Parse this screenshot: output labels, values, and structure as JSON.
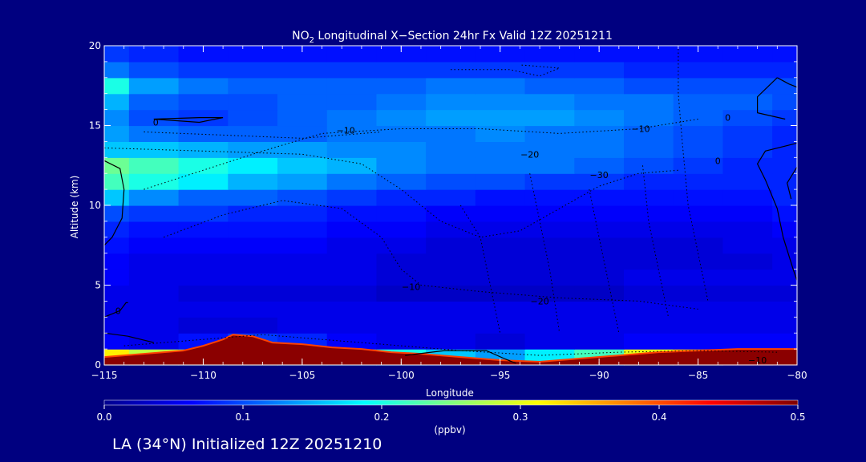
{
  "figure": {
    "background_color": "#000080",
    "text_color": "#ffffff",
    "footer": "LA (34°N) Initialized 12Z 20251210"
  },
  "chart_data": {
    "type": "heatmap",
    "title_prefix": "NO",
    "title_subscript": "2",
    "title_suffix": " Longitudinal X−Section 24hr  Fx Valid 12Z 20251211",
    "xlabel": "Longitude",
    "ylabel": "Altitude (km)",
    "xlim": [
      -115,
      -80
    ],
    "ylim": [
      0,
      20
    ],
    "x_ticks": [
      -115,
      -110,
      -105,
      -100,
      -95,
      -90,
      -85,
      -80
    ],
    "x_tick_labels": [
      "−115",
      "−110",
      "−105",
      "−100",
      "−95",
      "−90",
      "−85",
      "−80"
    ],
    "y_ticks": [
      0,
      5,
      10,
      15,
      20
    ],
    "y_tick_labels": [
      "0",
      "5",
      "10",
      "15",
      "20"
    ],
    "colorbar": {
      "label": "(ppbv)",
      "range": [
        0.0,
        0.5
      ],
      "ticks": [
        0.0,
        0.1,
        0.2,
        0.3,
        0.4,
        0.5
      ],
      "tick_labels": [
        "0.0",
        "0.1",
        "0.2",
        "0.3",
        "0.4",
        "0.5"
      ],
      "colors": [
        "#00008f",
        "#0000ff",
        "#0080ff",
        "#00ffff",
        "#80ff80",
        "#ffff00",
        "#ff8000",
        "#ff0000",
        "#800000"
      ]
    },
    "grid": false,
    "x": [
      -115,
      -112.5,
      -110,
      -107.5,
      -105,
      -102.5,
      -100,
      -97.5,
      -95,
      -92.5,
      -90,
      -87.5,
      -85,
      -82.5,
      -80
    ],
    "y": [
      0.5,
      1.5,
      2.5,
      3.5,
      4.5,
      5.5,
      6.5,
      7.5,
      8.5,
      9.5,
      10.5,
      11.5,
      12.5,
      13.5,
      14.5,
      15.5,
      16.5,
      17.5,
      18.5,
      19.5
    ],
    "z": [
      [
        0.32,
        0.28,
        0.26,
        0.3,
        0.26,
        0.22,
        0.2,
        0.16,
        0.14,
        0.18,
        0.22,
        0.3,
        0.34,
        0.4,
        0.46
      ],
      [
        0.06,
        0.05,
        0.07,
        0.09,
        0.08,
        0.06,
        0.05,
        0.05,
        0.04,
        0.05,
        0.05,
        0.06,
        0.06,
        0.06,
        0.06
      ],
      [
        0.05,
        0.05,
        0.04,
        0.04,
        0.05,
        0.05,
        0.05,
        0.05,
        0.05,
        0.05,
        0.05,
        0.05,
        0.05,
        0.05,
        0.05
      ],
      [
        0.05,
        0.05,
        0.05,
        0.05,
        0.05,
        0.05,
        0.05,
        0.05,
        0.05,
        0.05,
        0.05,
        0.05,
        0.05,
        0.05,
        0.05
      ],
      [
        0.05,
        0.05,
        0.04,
        0.04,
        0.04,
        0.04,
        0.03,
        0.03,
        0.03,
        0.03,
        0.03,
        0.04,
        0.04,
        0.04,
        0.04
      ],
      [
        0.06,
        0.05,
        0.05,
        0.05,
        0.05,
        0.05,
        0.04,
        0.04,
        0.04,
        0.04,
        0.04,
        0.05,
        0.05,
        0.05,
        0.05
      ],
      [
        0.06,
        0.05,
        0.05,
        0.05,
        0.05,
        0.05,
        0.04,
        0.04,
        0.04,
        0.04,
        0.04,
        0.04,
        0.04,
        0.04,
        0.05
      ],
      [
        0.07,
        0.06,
        0.06,
        0.06,
        0.06,
        0.05,
        0.05,
        0.04,
        0.04,
        0.04,
        0.04,
        0.04,
        0.04,
        0.05,
        0.05
      ],
      [
        0.08,
        0.07,
        0.07,
        0.07,
        0.07,
        0.06,
        0.06,
        0.05,
        0.05,
        0.05,
        0.05,
        0.05,
        0.05,
        0.05,
        0.06
      ],
      [
        0.1,
        0.09,
        0.09,
        0.08,
        0.08,
        0.07,
        0.07,
        0.06,
        0.06,
        0.06,
        0.06,
        0.06,
        0.06,
        0.06,
        0.07
      ],
      [
        0.16,
        0.13,
        0.11,
        0.11,
        0.1,
        0.09,
        0.08,
        0.08,
        0.07,
        0.07,
        0.07,
        0.07,
        0.07,
        0.07,
        0.08
      ],
      [
        0.22,
        0.2,
        0.18,
        0.15,
        0.14,
        0.12,
        0.11,
        0.1,
        0.1,
        0.09,
        0.09,
        0.08,
        0.08,
        0.08,
        0.08
      ],
      [
        0.24,
        0.22,
        0.2,
        0.18,
        0.16,
        0.15,
        0.13,
        0.12,
        0.12,
        0.12,
        0.11,
        0.1,
        0.09,
        0.08,
        0.08
      ],
      [
        0.16,
        0.16,
        0.15,
        0.14,
        0.14,
        0.13,
        0.13,
        0.12,
        0.12,
        0.12,
        0.12,
        0.11,
        0.1,
        0.09,
        0.08
      ],
      [
        0.14,
        0.12,
        0.11,
        0.11,
        0.11,
        0.12,
        0.12,
        0.12,
        0.13,
        0.12,
        0.12,
        0.11,
        0.1,
        0.09,
        0.08
      ],
      [
        0.13,
        0.1,
        0.09,
        0.1,
        0.11,
        0.12,
        0.13,
        0.14,
        0.14,
        0.14,
        0.13,
        0.12,
        0.11,
        0.1,
        0.09
      ],
      [
        0.15,
        0.11,
        0.1,
        0.1,
        0.11,
        0.11,
        0.12,
        0.13,
        0.13,
        0.13,
        0.12,
        0.12,
        0.11,
        0.11,
        0.1
      ],
      [
        0.2,
        0.14,
        0.12,
        0.11,
        0.11,
        0.11,
        0.11,
        0.12,
        0.12,
        0.11,
        0.11,
        0.1,
        0.1,
        0.1,
        0.1
      ],
      [
        0.12,
        0.1,
        0.09,
        0.09,
        0.09,
        0.09,
        0.09,
        0.09,
        0.09,
        0.09,
        0.09,
        0.08,
        0.08,
        0.08,
        0.08
      ],
      [
        0.09,
        0.08,
        0.07,
        0.07,
        0.07,
        0.07,
        0.07,
        0.07,
        0.07,
        0.07,
        0.07,
        0.07,
        0.07,
        0.07,
        0.07
      ]
    ],
    "terrain": {
      "x": [
        -115,
        -113,
        -111,
        -110,
        -109,
        -108.5,
        -107.5,
        -106.5,
        -105,
        -103.5,
        -102,
        -100.5,
        -99,
        -97,
        -95,
        -93,
        -91,
        -89,
        -87,
        -85,
        -83,
        -80
      ],
      "y": [
        0.5,
        0.7,
        0.9,
        1.2,
        1.6,
        1.9,
        1.8,
        1.4,
        1.3,
        1.1,
        1.0,
        0.8,
        0.7,
        0.5,
        0.3,
        0.2,
        0.4,
        0.6,
        0.8,
        0.9,
        1.0,
        1.0
      ]
    },
    "contour_labels": [
      {
        "text": "0",
        "x": -112.4,
        "y": 15.2
      },
      {
        "text": "−10",
        "x": -102.8,
        "y": 14.7
      },
      {
        "text": "−10",
        "x": -99.5,
        "y": 4.9
      },
      {
        "text": "−10",
        "x": -87.9,
        "y": 14.8
      },
      {
        "text": "−20",
        "x": -93.5,
        "y": 13.2
      },
      {
        "text": "−30",
        "x": -90.0,
        "y": 11.9
      },
      {
        "text": "−20",
        "x": -93.0,
        "y": 4.0
      },
      {
        "text": "0",
        "x": -114.3,
        "y": 3.4
      },
      {
        "text": "0",
        "x": -83.5,
        "y": 15.5
      },
      {
        "text": "0",
        "x": -84.0,
        "y": 12.8
      },
      {
        "text": "−10",
        "x": -82.0,
        "y": 0.3
      }
    ],
    "contour_lines_solid": [
      [
        [
          -112.5,
          15.4
        ],
        [
          -110.2,
          15.5
        ],
        [
          -109.0,
          15.5
        ],
        [
          -110.2,
          15.2
        ],
        [
          -112.5,
          15.4
        ]
      ],
      [
        [
          -115,
          12.8
        ],
        [
          -114.2,
          12.3
        ],
        [
          -114.0,
          11.0
        ],
        [
          -114.1,
          9.2
        ],
        [
          -114.6,
          8.0
        ],
        [
          -115,
          7.5
        ]
      ],
      [
        [
          -115,
          3.0
        ],
        [
          -114.2,
          3.4
        ],
        [
          -113.9,
          3.9
        ],
        [
          -113.8,
          3.9
        ]
      ],
      [
        [
          -115,
          2.0
        ],
        [
          -113.8,
          1.8
        ],
        [
          -112.5,
          1.4
        ]
      ],
      [
        [
          -81.0,
          18.0
        ],
        [
          -80.4,
          17.6
        ],
        [
          -80.0,
          17.4
        ]
      ],
      [
        [
          -81.0,
          18.0
        ],
        [
          -82.0,
          16.8
        ],
        [
          -82.0,
          15.8
        ],
        [
          -80.6,
          15.4
        ]
      ],
      [
        [
          -80.0,
          13.9
        ],
        [
          -81.6,
          13.4
        ],
        [
          -82.0,
          12.6
        ],
        [
          -81.6,
          11.6
        ],
        [
          -81.0,
          9.8
        ],
        [
          -80.7,
          8.0
        ],
        [
          -80.2,
          6.0
        ],
        [
          -80.0,
          5.3
        ]
      ],
      [
        [
          -80.0,
          12.4
        ],
        [
          -80.5,
          11.4
        ],
        [
          -80.3,
          10.4
        ]
      ],
      [
        [
          -99.8,
          0.6
        ],
        [
          -97.8,
          0.9
        ],
        [
          -95.7,
          0.9
        ],
        [
          -94.8,
          0.4
        ],
        [
          -94.2,
          0.1
        ]
      ]
    ],
    "contour_lines_dotted": [
      [
        [
          -115,
          13.6
        ],
        [
          -110,
          13.4
        ],
        [
          -105,
          13.2
        ],
        [
          -102,
          12.6
        ],
        [
          -100,
          11.0
        ],
        [
          -98,
          9.0
        ],
        [
          -96,
          8.0
        ],
        [
          -94,
          8.4
        ],
        [
          -92,
          9.8
        ],
        [
          -90,
          11.2
        ],
        [
          -88,
          12.0
        ],
        [
          -86,
          12.2
        ]
      ],
      [
        [
          -113,
          11.0
        ],
        [
          -110,
          12.2
        ],
        [
          -107,
          13.4
        ],
        [
          -104,
          14.5
        ],
        [
          -100,
          14.8
        ],
        [
          -96,
          14.8
        ],
        [
          -92,
          14.5
        ],
        [
          -88,
          14.8
        ],
        [
          -85,
          15.4
        ]
      ],
      [
        [
          -112,
          8.0
        ],
        [
          -109,
          9.4
        ],
        [
          -106,
          10.3
        ],
        [
          -103,
          9.8
        ],
        [
          -101,
          8.0
        ],
        [
          -100,
          6.0
        ],
        [
          -99,
          5.0
        ],
        [
          -96,
          4.6
        ],
        [
          -92,
          4.2
        ],
        [
          -88,
          4.0
        ],
        [
          -85,
          3.5
        ]
      ],
      [
        [
          -97,
          10.0
        ],
        [
          -96,
          8.0
        ],
        [
          -95.5,
          5.0
        ],
        [
          -95,
          2.0
        ]
      ],
      [
        [
          -93.5,
          12.0
        ],
        [
          -93,
          9.0
        ],
        [
          -92.5,
          6.0
        ],
        [
          -92,
          2.0
        ]
      ],
      [
        [
          -90.5,
          11.0
        ],
        [
          -90,
          8.0
        ],
        [
          -89.5,
          5.0
        ],
        [
          -89,
          2.0
        ]
      ],
      [
        [
          -87.8,
          12.5
        ],
        [
          -87.5,
          9.0
        ],
        [
          -87,
          6.0
        ],
        [
          -86.5,
          3.0
        ]
      ],
      [
        [
          -86,
          19.8
        ],
        [
          -86,
          17.0
        ],
        [
          -85.8,
          14.0
        ],
        [
          -85.5,
          10.0
        ],
        [
          -85,
          7.0
        ],
        [
          -84.5,
          4.0
        ]
      ],
      [
        [
          -113,
          14.6
        ],
        [
          -109,
          14.4
        ],
        [
          -105,
          14.2
        ],
        [
          -101,
          14.6
        ]
      ],
      [
        [
          -97.5,
          18.5
        ],
        [
          -94.5,
          18.5
        ],
        [
          -93,
          18.1
        ],
        [
          -92,
          18.6
        ],
        [
          -94,
          18.8
        ]
      ],
      [
        [
          -114,
          1.2
        ],
        [
          -110,
          1.6
        ],
        [
          -107,
          1.9
        ],
        [
          -104,
          1.6
        ],
        [
          -100,
          1.2
        ],
        [
          -97,
          0.9
        ],
        [
          -93,
          0.6
        ],
        [
          -89,
          0.8
        ],
        [
          -85,
          0.9
        ],
        [
          -81,
          0.8
        ]
      ]
    ]
  }
}
